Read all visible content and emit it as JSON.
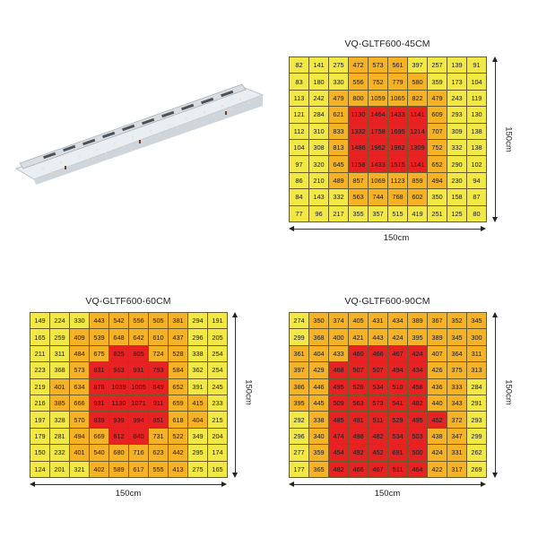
{
  "fixture": {
    "label": "LED grow light fixture"
  },
  "panels": [
    {
      "title": "VQ-GLTF600-45CM",
      "width_label": "150cm",
      "height_label": "150cm",
      "values": [
        [
          82,
          141,
          275,
          472,
          573,
          561,
          397,
          257,
          139,
          91
        ],
        [
          83,
          180,
          330,
          556,
          752,
          779,
          580,
          359,
          173,
          104
        ],
        [
          113,
          242,
          479,
          800,
          1059,
          1065,
          822,
          479,
          243,
          119
        ],
        [
          121,
          284,
          621,
          1130,
          1464,
          1433,
          1141,
          609,
          293,
          130
        ],
        [
          112,
          310,
          833,
          1332,
          1758,
          1695,
          1214,
          707,
          309,
          138
        ],
        [
          104,
          308,
          813,
          1486,
          1962,
          1962,
          1309,
          752,
          332,
          138
        ],
        [
          97,
          320,
          645,
          1158,
          1433,
          1515,
          1141,
          652,
          290,
          102
        ],
        [
          86,
          210,
          489,
          857,
          1069,
          1123,
          859,
          494,
          230,
          94
        ],
        [
          84,
          143,
          332,
          563,
          744,
          768,
          602,
          350,
          158,
          87
        ],
        [
          77,
          96,
          217,
          355,
          357,
          515,
          419,
          251,
          125,
          80
        ]
      ],
      "colors": [
        "YYYOOOYYYY",
        "YYYOOOOYYY",
        "YYOOOOOOYY",
        "YYORRRROYY",
        "YYORRRROYY",
        "YYORRRROYY",
        "YYORRRROYY",
        "YYOOOOOOYY",
        "YYYOOOOYYY",
        "YYYYYYYYYY"
      ]
    },
    {
      "title": "VQ-GLTF600-60CM",
      "width_label": "150cm",
      "height_label": "150cm",
      "values": [
        [
          149,
          224,
          330,
          443,
          542,
          556,
          505,
          381,
          294,
          191
        ],
        [
          165,
          259,
          409,
          539,
          648,
          642,
          610,
          437,
          296,
          205
        ],
        [
          211,
          311,
          484,
          675,
          825,
          805,
          724,
          528,
          338,
          254
        ],
        [
          223,
          368,
          573,
          831,
          963,
          931,
          793,
          584,
          362,
          254
        ],
        [
          219,
          401,
          634,
          876,
          1039,
          1005,
          849,
          652,
          391,
          245
        ],
        [
          216,
          385,
          666,
          931,
          1130,
          1071,
          911,
          659,
          415,
          233
        ],
        [
          197,
          328,
          570,
          839,
          939,
          994,
          851,
          618,
          404,
          215
        ],
        [
          179,
          281,
          494,
          669,
          812,
          840,
          731,
          522,
          349,
          204
        ],
        [
          150,
          232,
          401,
          540,
          680,
          716,
          623,
          442,
          295,
          174
        ],
        [
          124,
          201,
          321,
          402,
          589,
          617,
          555,
          413,
          275,
          165
        ]
      ],
      "colors": [
        "YYYOOOOOYY",
        "YYOOOOOOYY",
        "YYOORROOYY",
        "YYORRRROYY",
        "YOORRRROYY",
        "YOORRRROOY",
        "YYORRRROOY",
        "YYOORROOYY",
        "YYOOOOOOYY",
        "YYYOOOOOYY"
      ]
    },
    {
      "title": "VQ-GLTF600-90CM",
      "width_label": "150cm",
      "height_label": "150cm",
      "values": [
        [
          274,
          350,
          374,
          405,
          431,
          434,
          389,
          367,
          352,
          345
        ],
        [
          299,
          368,
          400,
          421,
          443,
          424,
          395,
          389,
          345,
          300
        ],
        [
          361,
          404,
          433,
          460,
          466,
          467,
          424,
          407,
          364,
          311
        ],
        [
          397,
          429,
          468,
          507,
          507,
          494,
          434,
          426,
          375,
          313
        ],
        [
          386,
          446,
          495,
          526,
          534,
          510,
          458,
          436,
          333,
          284
        ],
        [
          395,
          445,
          509,
          563,
          573,
          541,
          482,
          440,
          343,
          291
        ],
        [
          292,
          338,
          485,
          491,
          511,
          529,
          495,
          452,
          372,
          293
        ],
        [
          296,
          340,
          474,
          498,
          482,
          534,
          503,
          438,
          347,
          299
        ],
        [
          277,
          359,
          454,
          492,
          452,
          691,
          500,
          424,
          331,
          262
        ],
        [
          177,
          365,
          482,
          466,
          467,
          511,
          464,
          422,
          317,
          269
        ]
      ],
      "colors": [
        "YOOOOOOOOO",
        "YOOOOOOOOO",
        "OOORRRROOO",
        "OORRRRROOO",
        "OORRRRROOY",
        "OORRRRROOY",
        "YORRRRRROY",
        "YORRRRROOY",
        "YORRRRROOY",
        "YORRRRROOY"
      ]
    }
  ],
  "legend_colors": {
    "Y": "#f2e844",
    "O": "#f5b224",
    "R": "#e82222"
  }
}
